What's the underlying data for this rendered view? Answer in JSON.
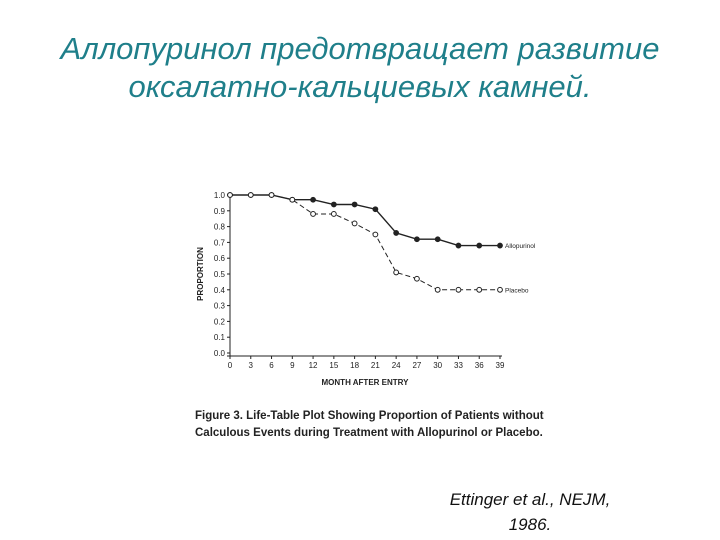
{
  "slide": {
    "title_line1": "Аллопуринол предотвращает развитие",
    "title_line2": "оксалатно-кальциевых камней.",
    "citation_line1": "Ettinger et al., NEJM,",
    "citation_line2": "1986."
  },
  "colors": {
    "title": "#1f7f8a",
    "plot": "#222222"
  },
  "chart_data": {
    "type": "line",
    "caption_line1": "Figure 3. Life-Table Plot Showing Proportion of Patients without",
    "caption_line2": "Calculous Events during Treatment with Allopurinol or Placebo.",
    "xlabel": "MONTH AFTER ENTRY",
    "ylabel": "PROPORTION",
    "xlim": [
      0,
      39
    ],
    "ylim": [
      0.0,
      1.0
    ],
    "x_ticks": [
      0,
      3,
      6,
      9,
      12,
      15,
      18,
      21,
      24,
      27,
      30,
      33,
      36,
      39
    ],
    "y_ticks": [
      "0.0",
      "0.1",
      "0.2",
      "0.3",
      "0.4",
      "0.5",
      "0.6",
      "0.7",
      "0.8",
      "0.9",
      "1.0"
    ],
    "grid": false,
    "series": [
      {
        "name": "Allopurinol",
        "style": "solid",
        "marker": "filled",
        "x": [
          0,
          3,
          6,
          9,
          12,
          15,
          18,
          21,
          24,
          27,
          30,
          33,
          36,
          39
        ],
        "y": [
          1.0,
          1.0,
          1.0,
          0.97,
          0.97,
          0.94,
          0.94,
          0.91,
          0.76,
          0.72,
          0.72,
          0.68,
          0.68,
          0.68
        ]
      },
      {
        "name": "Placebo",
        "style": "dashed",
        "marker": "open",
        "x": [
          0,
          3,
          6,
          9,
          12,
          15,
          18,
          21,
          24,
          27,
          30,
          33,
          36,
          39
        ],
        "y": [
          1.0,
          1.0,
          1.0,
          0.97,
          0.88,
          0.88,
          0.82,
          0.75,
          0.51,
          0.47,
          0.4,
          0.4,
          0.4,
          0.4
        ]
      }
    ]
  }
}
